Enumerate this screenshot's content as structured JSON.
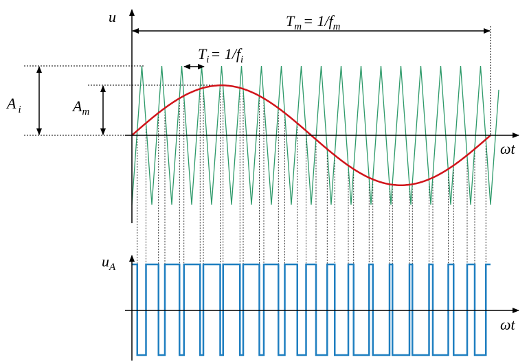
{
  "labels": {
    "u": "u",
    "period_m": {
      "base": "T",
      "sub": "m",
      "rest": "= 1/f",
      "sub2": "m"
    },
    "period_i": {
      "base": "T",
      "sub": "i",
      "rest": "= 1/f",
      "sub2": "i"
    },
    "amp_i": {
      "base": "A",
      "sub": "i"
    },
    "amp_m": {
      "base": "A",
      "sub": "m"
    },
    "omega_t_top": "ωt",
    "u_a": {
      "base": "u",
      "sub": "A"
    },
    "omega_t_bottom": "ωt"
  }
}
